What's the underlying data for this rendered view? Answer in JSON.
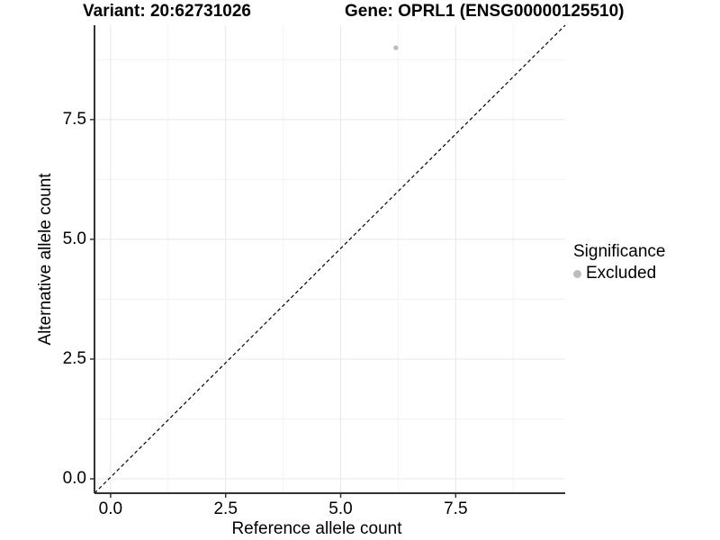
{
  "chart_data": {
    "type": "scatter",
    "title_variant": "Variant: 20:62731026",
    "title_gene": "Gene: OPRL1 (ENSG00000125510)",
    "xlabel": "Reference allele count",
    "ylabel": "Alternative allele count",
    "x_tick_values": [
      0,
      2.5,
      5,
      7.5
    ],
    "x_tick_labels": [
      "0.0",
      "2.5",
      "5.0",
      "7.5"
    ],
    "x_minor_breaks": [
      1.25,
      3.75,
      6.25,
      8.75
    ],
    "y_tick_values": [
      0,
      2.5,
      5,
      7.5
    ],
    "y_tick_labels": [
      "0.0",
      "2.5",
      "5.0",
      "7.5"
    ],
    "y_minor_breaks": [
      1.25,
      3.75,
      6.25,
      8.75
    ],
    "xlim": [
      -0.35,
      9.88
    ],
    "ylim": [
      -0.3,
      9.47
    ],
    "grid": true,
    "points": [
      {
        "x": 6.2,
        "y": 9.0,
        "significance": "Excluded"
      }
    ],
    "abline": {
      "slope": 1,
      "intercept": 0,
      "linetype": "dashed"
    },
    "legend": {
      "title": "Significance",
      "position": "right",
      "items": [
        {
          "label": "Excluded",
          "color": "#bcbcbc"
        }
      ]
    },
    "colors": {
      "point": "#bcbcbc",
      "grid_major": "#e8e8e8",
      "grid_minor": "#f3f3f3",
      "axis": "#333333",
      "abline": "#000000",
      "text": "#000000"
    }
  }
}
